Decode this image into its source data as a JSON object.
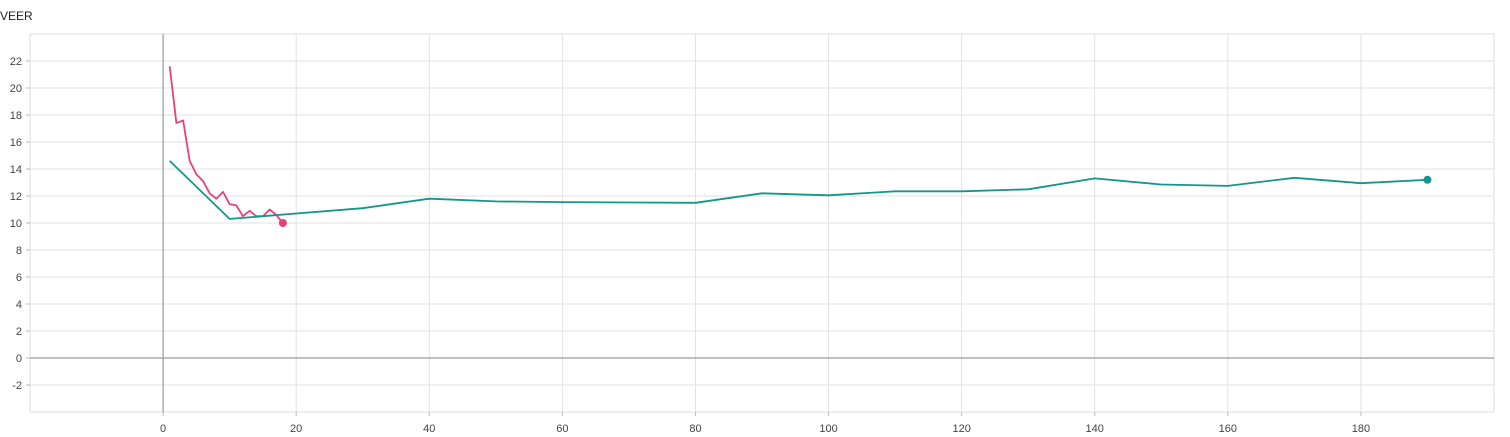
{
  "chart_data": {
    "type": "line",
    "title": "VEER",
    "xlabel": "",
    "ylabel": "",
    "xlim": [
      -20,
      200
    ],
    "ylim": [
      -4,
      24
    ],
    "x_ticks": [
      0,
      20,
      40,
      60,
      80,
      100,
      120,
      140,
      160,
      180
    ],
    "y_ticks": [
      -2,
      0,
      2,
      4,
      6,
      8,
      10,
      12,
      14,
      16,
      18,
      20,
      22
    ],
    "grid": true,
    "series": [
      {
        "color": "#e8407a",
        "end_marker": true,
        "x": [
          1,
          2,
          3,
          4,
          5,
          6,
          7,
          8,
          9,
          10,
          11,
          12,
          13,
          14,
          15,
          16,
          17,
          18
        ],
        "y": [
          21.6,
          17.4,
          17.6,
          14.6,
          13.6,
          13.1,
          12.2,
          11.8,
          12.3,
          11.4,
          11.3,
          10.5,
          10.9,
          10.5,
          10.5,
          11.0,
          10.6,
          10.0
        ]
      },
      {
        "color": "#14968a",
        "end_marker": true,
        "x": [
          1,
          10,
          20,
          30,
          40,
          50,
          60,
          80,
          90,
          100,
          110,
          120,
          130,
          140,
          150,
          160,
          170,
          180,
          190
        ],
        "y": [
          14.6,
          10.3,
          10.7,
          11.1,
          11.8,
          11.6,
          11.55,
          11.5,
          12.2,
          12.05,
          12.35,
          12.35,
          12.5,
          13.3,
          12.85,
          12.75,
          13.35,
          12.95,
          13.2
        ]
      }
    ]
  }
}
